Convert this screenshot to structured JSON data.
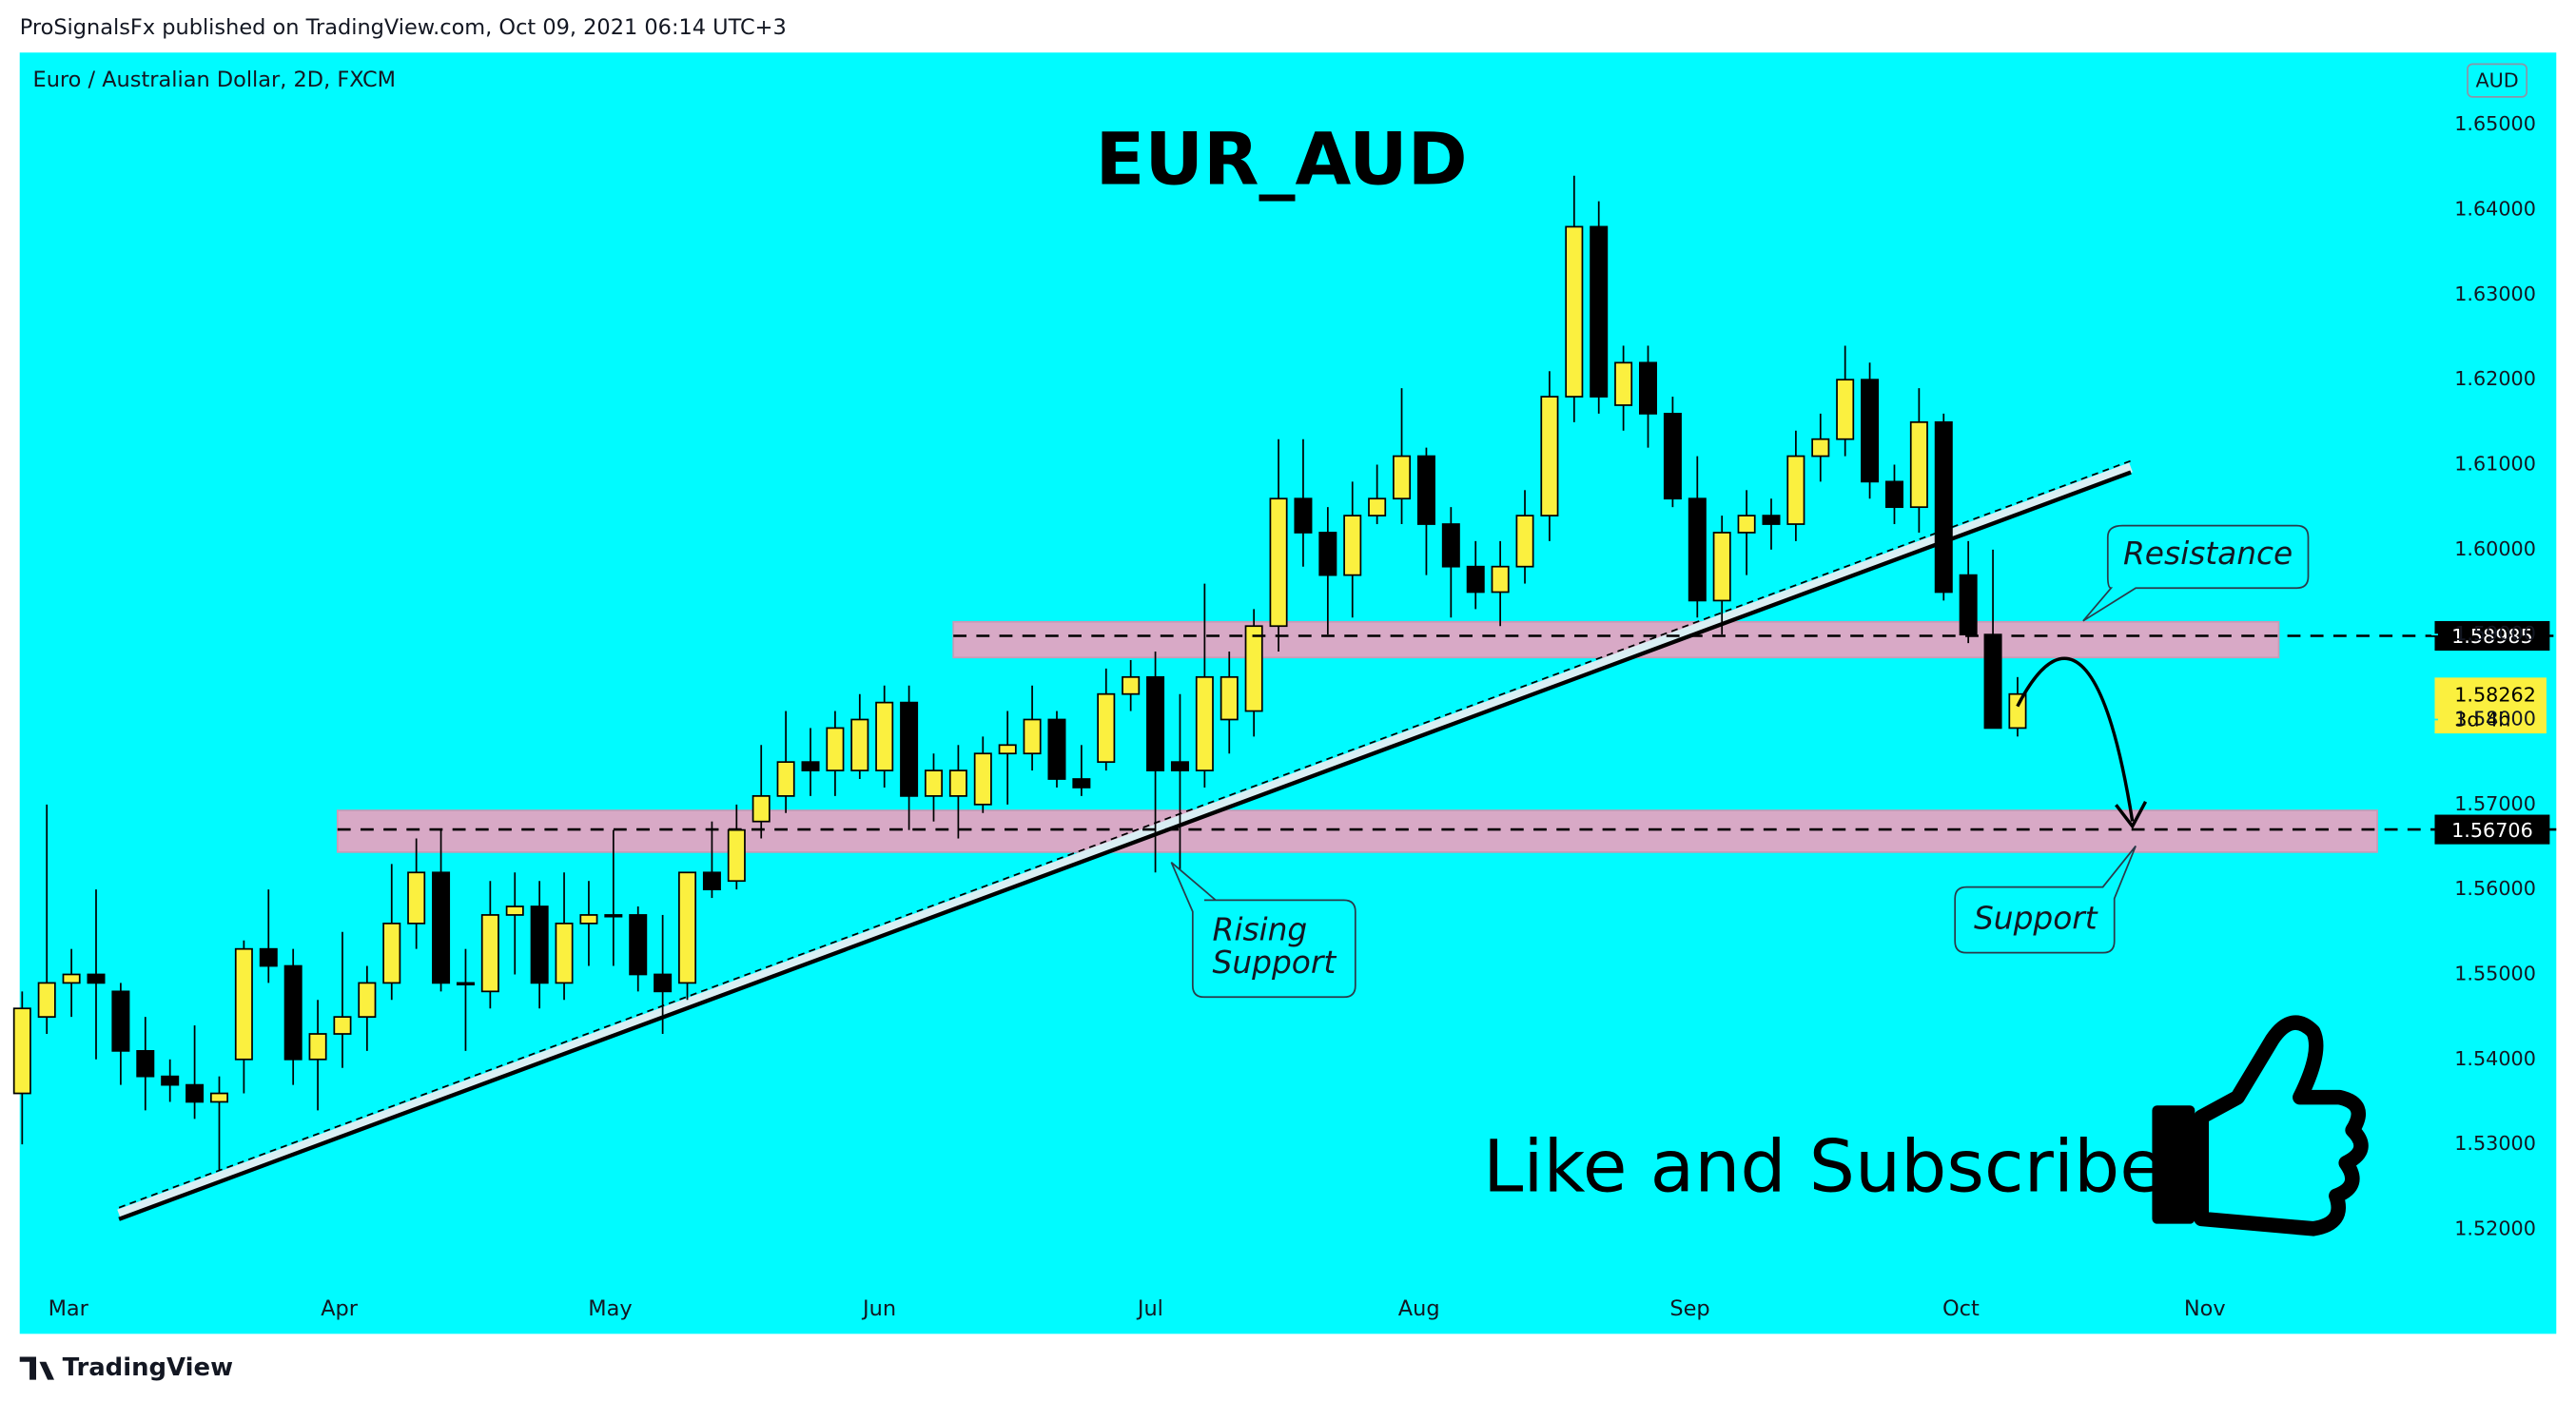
{
  "header": "ProSignalsFx published on TradingView.com, Oct 09, 2021 06:14 UTC+3",
  "footer": "TradingView",
  "chart_data": {
    "type": "candlestick",
    "title": "EUR_AUD",
    "legend": "Euro / Australian Dollar, 2D, FXCM",
    "currency": "AUD",
    "up_color": "#fbf03f",
    "down_color": "#000000",
    "background": "#00fbff",
    "open": [
      1.536,
      1.545,
      1.549,
      1.55,
      1.548,
      1.541,
      1.538,
      1.537,
      1.535,
      1.54,
      1.553,
      1.551,
      1.54,
      1.543,
      1.545,
      1.549,
      1.556,
      1.562,
      1.549,
      1.548,
      1.557,
      1.558,
      1.549,
      1.556,
      1.557,
      1.557,
      1.55,
      1.549,
      1.562,
      1.561,
      1.568,
      1.571,
      1.575,
      1.574,
      1.574,
      1.574,
      1.582,
      1.571,
      1.571,
      1.57,
      1.576,
      1.576,
      1.58,
      1.573,
      1.575,
      1.583,
      1.585,
      1.575,
      1.574,
      1.58,
      1.581,
      1.591,
      1.606,
      1.602,
      1.597,
      1.604,
      1.606,
      1.611,
      1.603,
      1.598,
      1.595,
      1.598,
      1.604,
      1.618,
      1.638,
      1.617,
      1.622,
      1.616,
      1.606,
      1.594,
      1.602,
      1.604,
      1.603,
      1.611,
      1.613,
      1.62,
      1.608,
      1.605,
      1.615,
      1.597,
      1.59,
      1.579
    ],
    "high": [
      1.548,
      1.57,
      1.553,
      1.56,
      1.549,
      1.545,
      1.54,
      1.544,
      1.538,
      1.554,
      1.56,
      1.553,
      1.547,
      1.555,
      1.551,
      1.563,
      1.566,
      1.567,
      1.553,
      1.561,
      1.562,
      1.561,
      1.562,
      1.561,
      1.567,
      1.558,
      1.557,
      1.562,
      1.568,
      1.57,
      1.577,
      1.581,
      1.579,
      1.581,
      1.583,
      1.584,
      1.584,
      1.576,
      1.577,
      1.578,
      1.581,
      1.584,
      1.581,
      1.577,
      1.586,
      1.587,
      1.588,
      1.583,
      1.596,
      1.588,
      1.593,
      1.613,
      1.613,
      1.605,
      1.608,
      1.61,
      1.619,
      1.612,
      1.605,
      1.601,
      1.601,
      1.607,
      1.621,
      1.644,
      1.641,
      1.624,
      1.624,
      1.618,
      1.611,
      1.604,
      1.607,
      1.606,
      1.614,
      1.616,
      1.624,
      1.622,
      1.61,
      1.619,
      1.616,
      1.601,
      1.6,
      1.585
    ],
    "low": [
      1.53,
      1.543,
      1.545,
      1.54,
      1.537,
      1.534,
      1.535,
      1.533,
      1.527,
      1.536,
      1.549,
      1.537,
      1.534,
      1.539,
      1.541,
      1.547,
      1.553,
      1.548,
      1.541,
      1.546,
      1.55,
      1.546,
      1.547,
      1.551,
      1.551,
      1.548,
      1.543,
      1.547,
      1.559,
      1.56,
      1.566,
      1.569,
      1.571,
      1.571,
      1.573,
      1.572,
      1.567,
      1.568,
      1.566,
      1.569,
      1.57,
      1.574,
      1.572,
      1.571,
      1.574,
      1.581,
      1.562,
      1.561,
      1.572,
      1.576,
      1.578,
      1.588,
      1.598,
      1.59,
      1.592,
      1.603,
      1.603,
      1.597,
      1.592,
      1.593,
      1.591,
      1.596,
      1.601,
      1.615,
      1.616,
      1.614,
      1.612,
      1.605,
      1.592,
      1.59,
      1.597,
      1.6,
      1.601,
      1.608,
      1.611,
      1.606,
      1.603,
      1.602,
      1.594,
      1.589,
      1.579,
      1.578
    ],
    "close": [
      1.546,
      1.549,
      1.55,
      1.549,
      1.541,
      1.538,
      1.537,
      1.535,
      1.536,
      1.553,
      1.551,
      1.54,
      1.543,
      1.545,
      1.549,
      1.556,
      1.562,
      1.549,
      1.549,
      1.557,
      1.558,
      1.549,
      1.556,
      1.557,
      1.557,
      1.55,
      1.548,
      1.562,
      1.56,
      1.567,
      1.571,
      1.575,
      1.574,
      1.579,
      1.58,
      1.582,
      1.571,
      1.574,
      1.574,
      1.576,
      1.577,
      1.58,
      1.573,
      1.572,
      1.583,
      1.585,
      1.574,
      1.574,
      1.585,
      1.585,
      1.591,
      1.606,
      1.602,
      1.597,
      1.604,
      1.606,
      1.611,
      1.603,
      1.598,
      1.595,
      1.598,
      1.604,
      1.618,
      1.638,
      1.618,
      1.622,
      1.616,
      1.606,
      1.594,
      1.602,
      1.604,
      1.603,
      1.611,
      1.613,
      1.62,
      1.608,
      1.605,
      1.615,
      1.595,
      1.59,
      1.579,
      1.583
    ],
    "xlim": [
      -0.1,
      97.8
    ],
    "xticks": [
      {
        "value": 1.87,
        "label": "Mar"
      },
      {
        "value": 12.87,
        "label": "Apr"
      },
      {
        "value": 23.87,
        "label": "May"
      },
      {
        "value": 34.8,
        "label": "Jun"
      },
      {
        "value": 45.8,
        "label": "Jul"
      },
      {
        "value": 56.7,
        "label": "Aug"
      },
      {
        "value": 67.7,
        "label": "Sep"
      },
      {
        "value": 78.7,
        "label": "Oct"
      },
      {
        "value": 88.6,
        "label": "Nov"
      }
    ],
    "ylim": [
      1.5077,
      1.6585
    ],
    "yticks": [
      {
        "value": 1.52,
        "label": "1.52000"
      },
      {
        "value": 1.53,
        "label": "1.53000"
      },
      {
        "value": 1.54,
        "label": "1.54000"
      },
      {
        "value": 1.55,
        "label": "1.55000"
      },
      {
        "value": 1.56,
        "label": "1.56000"
      },
      {
        "value": 1.57,
        "label": "1.57000"
      },
      {
        "value": 1.58,
        "label": "1.58000"
      },
      {
        "value": 1.59,
        "label": "1.59000"
      },
      {
        "value": 1.6,
        "label": "1.60000"
      },
      {
        "value": 1.61,
        "label": "1.61000"
      },
      {
        "value": 1.62,
        "label": "1.62000"
      },
      {
        "value": 1.63,
        "label": "1.63000"
      },
      {
        "value": 1.64,
        "label": "1.64000"
      },
      {
        "value": 1.65,
        "label": "1.65000"
      }
    ],
    "levels": [
      {
        "value": 1.58985,
        "start": 37.8
      },
      {
        "value": 1.56706,
        "start": 12.8
      }
    ],
    "last_price": 1.58262,
    "countdown": "3d 4h",
    "zones": [
      {
        "low": 1.5873,
        "high": 1.5915,
        "start": 37.8,
        "end": 91.6
      },
      {
        "low": 1.5644,
        "high": 1.5693,
        "start": 12.8,
        "end": 95.6
      }
    ],
    "trendline": {
      "x": [
        3.93,
        85.6
      ],
      "y": [
        1.5212,
        1.6091
      ]
    },
    "annotations": {
      "resistance": "Resistance",
      "rising_support": [
        "Rising",
        "Support"
      ],
      "support": "Support",
      "cta": "Like and Subscribe"
    }
  }
}
